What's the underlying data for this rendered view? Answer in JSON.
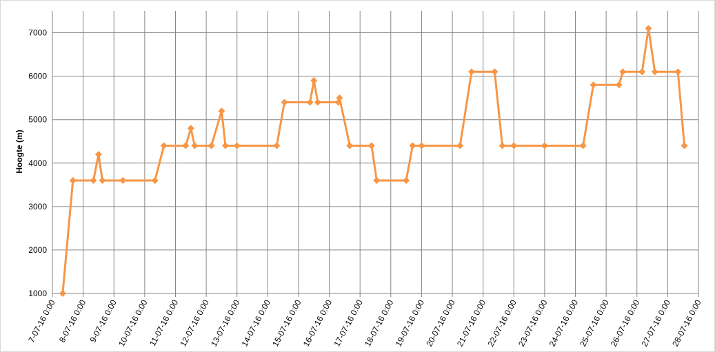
{
  "chart_data": {
    "type": "line",
    "y_label": "Hoogte (m)",
    "x": [
      "7-07-16 8:00",
      "7-07-16 16:00",
      "8-07-16 8:00",
      "8-07-16 12:00",
      "8-07-16 15:00",
      "9-07-16 7:00",
      "10-07-16 8:00",
      "10-07-16 15:00",
      "11-07-16 8:00",
      "11-07-16 12:00",
      "11-07-16 15:00",
      "12-07-16 4:00",
      "12-07-16 12:00",
      "12-07-16 15:00",
      "13-07-16 0:00",
      "14-07-16 7:00",
      "14-07-16 13:00",
      "15-07-16 9:00",
      "15-07-16 12:00",
      "15-07-16 15:00",
      "16-07-16 7:00",
      "16-07-16 8:00",
      "16-07-16 16:00",
      "17-07-16 9:00",
      "17-07-16 13:00",
      "18-07-16 12:00",
      "18-07-16 17:00",
      "19-07-16 0:00",
      "20-07-16 6:00",
      "20-07-16 15:00",
      "21-07-16 9:00",
      "21-07-16 15:00",
      "22-07-16 0:00",
      "23-07-16 0:00",
      "24-07-16 6:00",
      "24-07-16 14:00",
      "25-07-16 10:00",
      "25-07-16 13:00",
      "26-07-16 4:00",
      "26-07-16 9:00",
      "26-07-16 14:00",
      "27-07-16 8:00",
      "27-07-16 13:00"
    ],
    "series": [
      {
        "name": "Hoogte",
        "color": "#f79646",
        "values": [
          1000,
          3600,
          3600,
          4200,
          3600,
          3600,
          3600,
          4400,
          4400,
          4800,
          4400,
          4400,
          5200,
          4400,
          4400,
          4400,
          5400,
          5400,
          5900,
          5400,
          5400,
          5500,
          4400,
          4400,
          3600,
          3600,
          4400,
          4400,
          4400,
          6100,
          6100,
          4400,
          4400,
          4400,
          4400,
          5800,
          5800,
          6100,
          6100,
          7100,
          6100,
          6100,
          4400
        ]
      }
    ],
    "xlim": [
      "7-07-16 0:00",
      "28-07-16 0:00"
    ],
    "xticks": [
      "7-07-16 0:00",
      "8-07-16 0:00",
      "9-07-16 0:00",
      "10-07-16 0:00",
      "11-07-16 0:00",
      "12-07-16 0:00",
      "13-07-16 0:00",
      "14-07-16 0:00",
      "15-07-16 0:00",
      "16-07-16 0:00",
      "17-07-16 0:00",
      "18-07-16 0:00",
      "19-07-16 0:00",
      "20-07-16 0:00",
      "21-07-16 0:00",
      "22-07-16 0:00",
      "23-07-16 0:00",
      "24-07-16 0:00",
      "25-07-16 0:00",
      "26-07-16 0:00",
      "27-07-16 0:00",
      "28-07-16 0:00"
    ],
    "ylim": [
      1000,
      7500
    ],
    "yticks": [
      1000,
      2000,
      3000,
      4000,
      5000,
      6000,
      7000
    ],
    "grid": true
  }
}
